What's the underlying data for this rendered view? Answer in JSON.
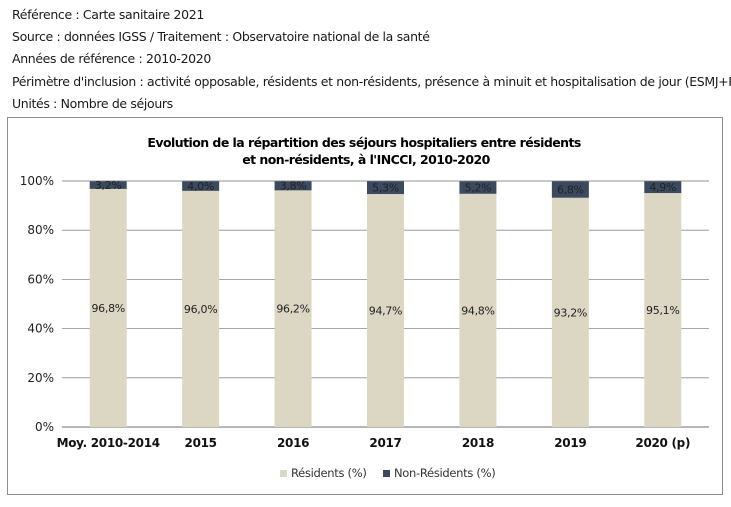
{
  "meta": {
    "reference": "Référence : Carte sanitaire 2021",
    "source": "Source : données IGSS / Traitement : Observatoire national de la santé",
    "years": "Années de référence : 2010-2020",
    "scope": "Périmètre d'inclusion : activité opposable, résidents et non-résidents, présence à minuit et hospitalisation de jour (ESMJ+PSA)",
    "units": "Unités : Nombre de séjours"
  },
  "colors": {
    "residents": "#dcd7c3",
    "non_residents": "#3b4a5f",
    "gridline": "#8a8a8a",
    "axis": "#8a8a8a"
  },
  "chart_data": {
    "type": "bar",
    "stacked": true,
    "percent": true,
    "title": "Evolution de la répartition des séjours hospitaliers entre résidents\net non-résidents, à l'INCCI, 2010-2020",
    "title_lines": [
      "Evolution de la répartition des séjours hospitaliers entre résidents",
      "et non-résidents, à l'INCCI, 2010-2020"
    ],
    "categories": [
      "Moy. 2010-2014",
      "2015",
      "2016",
      "2017",
      "2018",
      "2019",
      "2020 (p)"
    ],
    "series": [
      {
        "name": "Résidents (%)",
        "values": [
          96.8,
          96.0,
          96.2,
          94.7,
          94.8,
          93.2,
          95.1
        ],
        "labels": [
          "96,8%",
          "96,0%",
          "96,2%",
          "94,7%",
          "94,8%",
          "93,2%",
          "95,1%"
        ]
      },
      {
        "name": "Non-Résidents (%)",
        "values": [
          3.2,
          4.0,
          3.8,
          5.3,
          5.2,
          6.8,
          4.9
        ],
        "labels": [
          "3,2%",
          "4,0%",
          "3,8%",
          "5,3%",
          "5,2%",
          "6,8%",
          "4,9%"
        ]
      }
    ],
    "ylim": [
      0,
      100
    ],
    "yticks": [
      0,
      20,
      40,
      60,
      80,
      100
    ],
    "ytick_labels": [
      "0%",
      "20%",
      "40%",
      "60%",
      "80%",
      "100%"
    ],
    "grid": true,
    "legend_position": "bottom"
  }
}
